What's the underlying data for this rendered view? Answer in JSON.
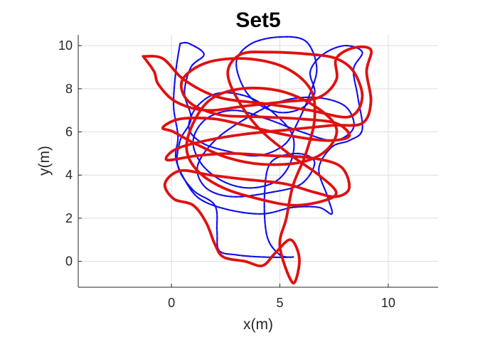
{
  "chart_data": {
    "type": "line",
    "title": "Set5",
    "xlabel": "x(m)",
    "ylabel": "y(m)",
    "xlim": [
      -4.3,
      12.3
    ],
    "ylim": [
      -1.2,
      10.5
    ],
    "xticks": [
      0,
      5,
      10
    ],
    "yticks": [
      0,
      2,
      4,
      6,
      8,
      10
    ],
    "grid": true,
    "colors": {
      "blue_series": "#1010ee",
      "red_series": "#e01010"
    },
    "series": [
      {
        "color": "#1010ee",
        "points": [
          [
            0.4,
            10.1
          ],
          [
            0.2,
            8.8
          ],
          [
            0.1,
            7.2
          ],
          [
            0.3,
            5.8
          ],
          [
            0.2,
            4.8
          ],
          [
            0.6,
            3.8
          ],
          [
            1.3,
            2.9
          ],
          [
            2.6,
            2.4
          ],
          [
            4.2,
            2.2
          ],
          [
            5.6,
            2.5
          ],
          [
            6.8,
            2.5
          ],
          [
            7.4,
            2.2
          ],
          [
            7.2,
            3.0
          ],
          [
            6.8,
            4.3
          ],
          [
            7.4,
            5.3
          ],
          [
            8.2,
            5.6
          ],
          [
            8.8,
            6.1
          ],
          [
            8.6,
            7.6
          ],
          [
            8.4,
            8.9
          ],
          [
            8.8,
            9.7
          ],
          [
            8.0,
            10.0
          ],
          [
            7.0,
            9.6
          ],
          [
            6.4,
            8.8
          ],
          [
            6.6,
            7.8
          ],
          [
            6.0,
            7.1
          ],
          [
            5.0,
            6.9
          ],
          [
            4.0,
            7.3
          ],
          [
            3.3,
            8.1
          ],
          [
            3.0,
            9.3
          ],
          [
            3.7,
            10.1
          ],
          [
            5.0,
            10.4
          ],
          [
            6.2,
            10.2
          ],
          [
            6.7,
            9.0
          ],
          [
            6.4,
            7.8
          ],
          [
            5.8,
            6.4
          ],
          [
            5.2,
            5.4
          ],
          [
            4.0,
            4.9
          ],
          [
            2.6,
            5.1
          ],
          [
            1.4,
            5.5
          ],
          [
            0.8,
            6.2
          ],
          [
            1.2,
            7.2
          ],
          [
            2.2,
            7.8
          ],
          [
            3.6,
            7.6
          ],
          [
            4.8,
            6.8
          ],
          [
            5.6,
            5.8
          ],
          [
            5.5,
            4.6
          ],
          [
            4.8,
            3.7
          ],
          [
            3.6,
            3.4
          ],
          [
            2.4,
            3.7
          ],
          [
            1.4,
            4.5
          ],
          [
            1.0,
            5.6
          ],
          [
            1.6,
            6.6
          ],
          [
            2.9,
            7.0
          ],
          [
            4.4,
            6.6
          ],
          [
            6.0,
            6.0
          ],
          [
            7.5,
            5.6
          ],
          [
            8.4,
            6.2
          ],
          [
            8.0,
            7.2
          ],
          [
            6.6,
            7.6
          ],
          [
            5.0,
            7.4
          ],
          [
            3.4,
            6.6
          ],
          [
            2.0,
            5.6
          ],
          [
            1.2,
            4.4
          ],
          [
            1.6,
            3.4
          ],
          [
            2.8,
            3.0
          ],
          [
            4.6,
            3.2
          ],
          [
            6.0,
            3.6
          ],
          [
            6.6,
            4.6
          ],
          [
            5.8,
            5.0
          ],
          [
            4.6,
            4.6
          ],
          [
            4.3,
            3.2
          ],
          [
            4.4,
            1.2
          ],
          [
            5.0,
            0.3
          ],
          [
            5.6,
            0.2
          ],
          [
            4.2,
            0.2
          ],
          [
            3.0,
            0.3
          ],
          [
            2.2,
            0.5
          ],
          [
            2.1,
            1.4
          ],
          [
            2.0,
            2.6
          ],
          [
            1.0,
            3.3
          ],
          [
            0.3,
            4.4
          ],
          [
            0.4,
            5.6
          ],
          [
            0.9,
            6.6
          ],
          [
            0.6,
            7.8
          ],
          [
            0.9,
            9.0
          ],
          [
            1.5,
            9.6
          ],
          [
            0.8,
            10.1
          ],
          [
            0.4,
            10.1
          ]
        ]
      },
      {
        "color": "#e01010",
        "points": [
          [
            -1.3,
            9.5
          ],
          [
            -0.4,
            9.4
          ],
          [
            0.6,
            8.4
          ],
          [
            2.2,
            7.6
          ],
          [
            4.4,
            7.3
          ],
          [
            6.4,
            7.0
          ],
          [
            8.2,
            6.7
          ],
          [
            8.8,
            7.6
          ],
          [
            8.4,
            8.8
          ],
          [
            7.6,
            9.4
          ],
          [
            6.4,
            9.6
          ],
          [
            4.5,
            9.7
          ],
          [
            3.2,
            9.6
          ],
          [
            2.6,
            8.8
          ],
          [
            3.0,
            7.6
          ],
          [
            4.0,
            6.2
          ],
          [
            5.4,
            5.0
          ],
          [
            6.8,
            4.0
          ],
          [
            7.6,
            3.2
          ],
          [
            7.0,
            2.8
          ],
          [
            5.6,
            2.6
          ],
          [
            4.0,
            2.9
          ],
          [
            2.4,
            3.4
          ],
          [
            1.2,
            4.2
          ],
          [
            0.7,
            5.2
          ],
          [
            1.0,
            6.4
          ],
          [
            1.8,
            7.5
          ],
          [
            3.2,
            8.0
          ],
          [
            5.0,
            7.9
          ],
          [
            6.6,
            7.2
          ],
          [
            7.6,
            6.2
          ],
          [
            7.2,
            5.2
          ],
          [
            6.0,
            4.6
          ],
          [
            4.2,
            4.5
          ],
          [
            2.6,
            4.8
          ],
          [
            1.2,
            5.4
          ],
          [
            0.1,
            6.0
          ],
          [
            -0.4,
            6.2
          ],
          [
            0.4,
            6.6
          ],
          [
            2.0,
            6.6
          ],
          [
            3.8,
            6.2
          ],
          [
            5.6,
            5.8
          ],
          [
            7.2,
            5.6
          ],
          [
            8.2,
            5.8
          ],
          [
            7.6,
            6.4
          ],
          [
            6.0,
            6.6
          ],
          [
            4.0,
            6.7
          ],
          [
            2.2,
            6.8
          ],
          [
            0.8,
            7.4
          ],
          [
            0.5,
            8.4
          ],
          [
            1.6,
            9.2
          ],
          [
            3.4,
            9.4
          ],
          [
            5.2,
            9.0
          ],
          [
            6.4,
            8.0
          ],
          [
            6.6,
            6.6
          ],
          [
            6.2,
            5.0
          ],
          [
            5.6,
            3.5
          ],
          [
            5.3,
            2.0
          ],
          [
            5.0,
            0.7
          ],
          [
            5.6,
            -1.0
          ],
          [
            5.9,
            0.1
          ],
          [
            5.5,
            1.0
          ],
          [
            4.8,
            0.4
          ],
          [
            4.2,
            -0.2
          ],
          [
            3.4,
            0.0
          ],
          [
            2.4,
            0.2
          ],
          [
            2.0,
            0.8
          ],
          [
            1.6,
            1.8
          ],
          [
            1.0,
            2.6
          ],
          [
            0.1,
            2.9
          ],
          [
            -0.3,
            3.6
          ],
          [
            0.4,
            4.2
          ],
          [
            1.8,
            4.0
          ],
          [
            3.4,
            3.8
          ],
          [
            5.2,
            3.6
          ],
          [
            6.6,
            3.2
          ],
          [
            7.6,
            3.0
          ],
          [
            8.2,
            3.4
          ],
          [
            7.8,
            4.4
          ],
          [
            6.4,
            4.8
          ],
          [
            4.6,
            4.9
          ],
          [
            2.8,
            5.0
          ],
          [
            1.2,
            4.9
          ],
          [
            -0.2,
            4.7
          ],
          [
            0.2,
            5.2
          ],
          [
            1.6,
            5.6
          ],
          [
            3.4,
            5.9
          ],
          [
            5.4,
            6.1
          ],
          [
            7.4,
            6.3
          ],
          [
            8.8,
            6.4
          ],
          [
            9.2,
            7.4
          ],
          [
            9.0,
            8.8
          ],
          [
            9.2,
            9.8
          ],
          [
            8.4,
            9.9
          ],
          [
            7.6,
            9.4
          ],
          [
            7.6,
            8.4
          ],
          [
            6.8,
            7.6
          ],
          [
            5.2,
            7.4
          ],
          [
            3.4,
            7.2
          ],
          [
            1.6,
            7.0
          ],
          [
            0.2,
            7.4
          ],
          [
            -0.6,
            8.2
          ],
          [
            -0.8,
            8.8
          ],
          [
            -1.3,
            9.5
          ]
        ]
      }
    ]
  }
}
